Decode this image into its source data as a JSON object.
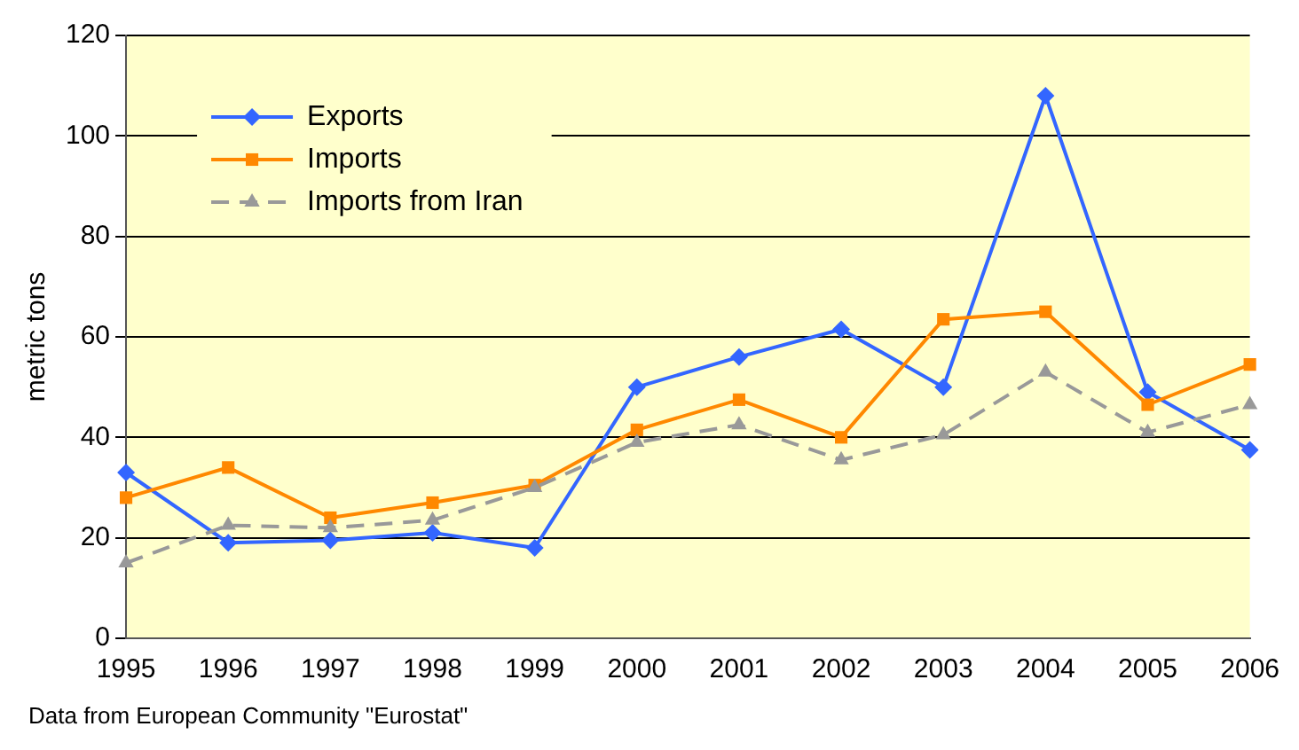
{
  "chart_data": {
    "type": "line",
    "ylabel": "metric tons",
    "categories": [
      "1995",
      "1996",
      "1997",
      "1998",
      "1999",
      "2000",
      "2001",
      "2002",
      "2003",
      "2004",
      "2005",
      "2006"
    ],
    "series": [
      {
        "name": "Exports",
        "color": "#3366ff",
        "marker": "diamond",
        "line_style": "solid",
        "values": [
          33,
          19,
          19.5,
          21,
          18,
          50,
          56,
          61.5,
          50,
          108,
          49,
          37.5
        ]
      },
      {
        "name": "Imports",
        "color": "#ff8800",
        "marker": "square",
        "line_style": "solid",
        "values": [
          28,
          34,
          24,
          27,
          30.5,
          41.5,
          47.5,
          40,
          63.5,
          65,
          46.5,
          54.5
        ]
      },
      {
        "name": "Imports from Iran",
        "color": "#999999",
        "marker": "triangle",
        "line_style": "dashed",
        "values": [
          15,
          22.5,
          22,
          23.5,
          30,
          39,
          42.5,
          35.5,
          40.5,
          53,
          41,
          46.5
        ]
      }
    ],
    "ylim": [
      0,
      120
    ],
    "yticks": [
      0,
      20,
      40,
      60,
      80,
      100,
      120
    ],
    "grid": "y",
    "legend": "top left",
    "annotations": [
      "Data from European Community \"Eurostat\""
    ]
  }
}
